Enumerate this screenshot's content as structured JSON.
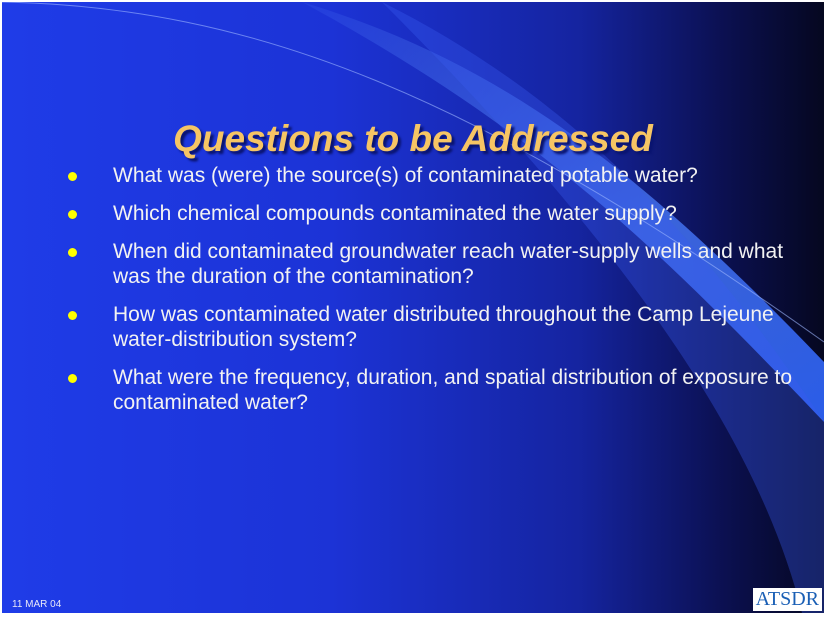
{
  "title": "Questions to be Addressed",
  "bullets": [
    "What was (were) the source(s) of contaminated potable water?",
    "Which chemical compounds contaminated the water supply?",
    "When did contaminated groundwater reach water-supply wells and what was the duration of the contamination?",
    "How was contaminated water distributed throughout the Camp Lejeune water-distribution system?",
    "What were the frequency, duration, and spatial distribution of exposure to contaminated water?"
  ],
  "footer": {
    "date": "11 MAR 04",
    "logo": "ATSDR"
  }
}
